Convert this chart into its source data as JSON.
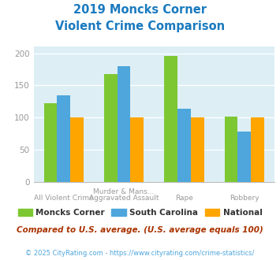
{
  "title_line1": "2019 Moncks Corner",
  "title_line2": "Violent Crime Comparison",
  "categories": [
    "All Violent Crime",
    "Murder & Mans...\nAggravated Assault",
    "Rape",
    "Robbery"
  ],
  "cat_top": [
    "",
    "Murder & Mans...",
    "",
    ""
  ],
  "cat_bottom": [
    "All Violent Crime",
    "Aggravated Assault",
    "Rape",
    "Robbery"
  ],
  "series": {
    "Moncks Corner": [
      122,
      168,
      196,
      102
    ],
    "South Carolina": [
      135,
      180,
      114,
      78
    ],
    "National": [
      100,
      100,
      100,
      100
    ]
  },
  "colors": {
    "Moncks Corner": "#7dc832",
    "South Carolina": "#4ea6dc",
    "National": "#ffa500"
  },
  "ylim": [
    0,
    210
  ],
  "yticks": [
    0,
    50,
    100,
    150,
    200
  ],
  "title_color": "#1a7abf",
  "plot_bg": "#ddeef5",
  "legend_note": "Compared to U.S. average. (U.S. average equals 100)",
  "footer": "© 2025 CityRating.com - https://www.cityrating.com/crime-statistics/",
  "bar_width": 0.22,
  "tick_label_color": "#999999",
  "legend_text_color": "#333333",
  "note_color": "#aa3300",
  "footer_color": "#4ea6dc"
}
